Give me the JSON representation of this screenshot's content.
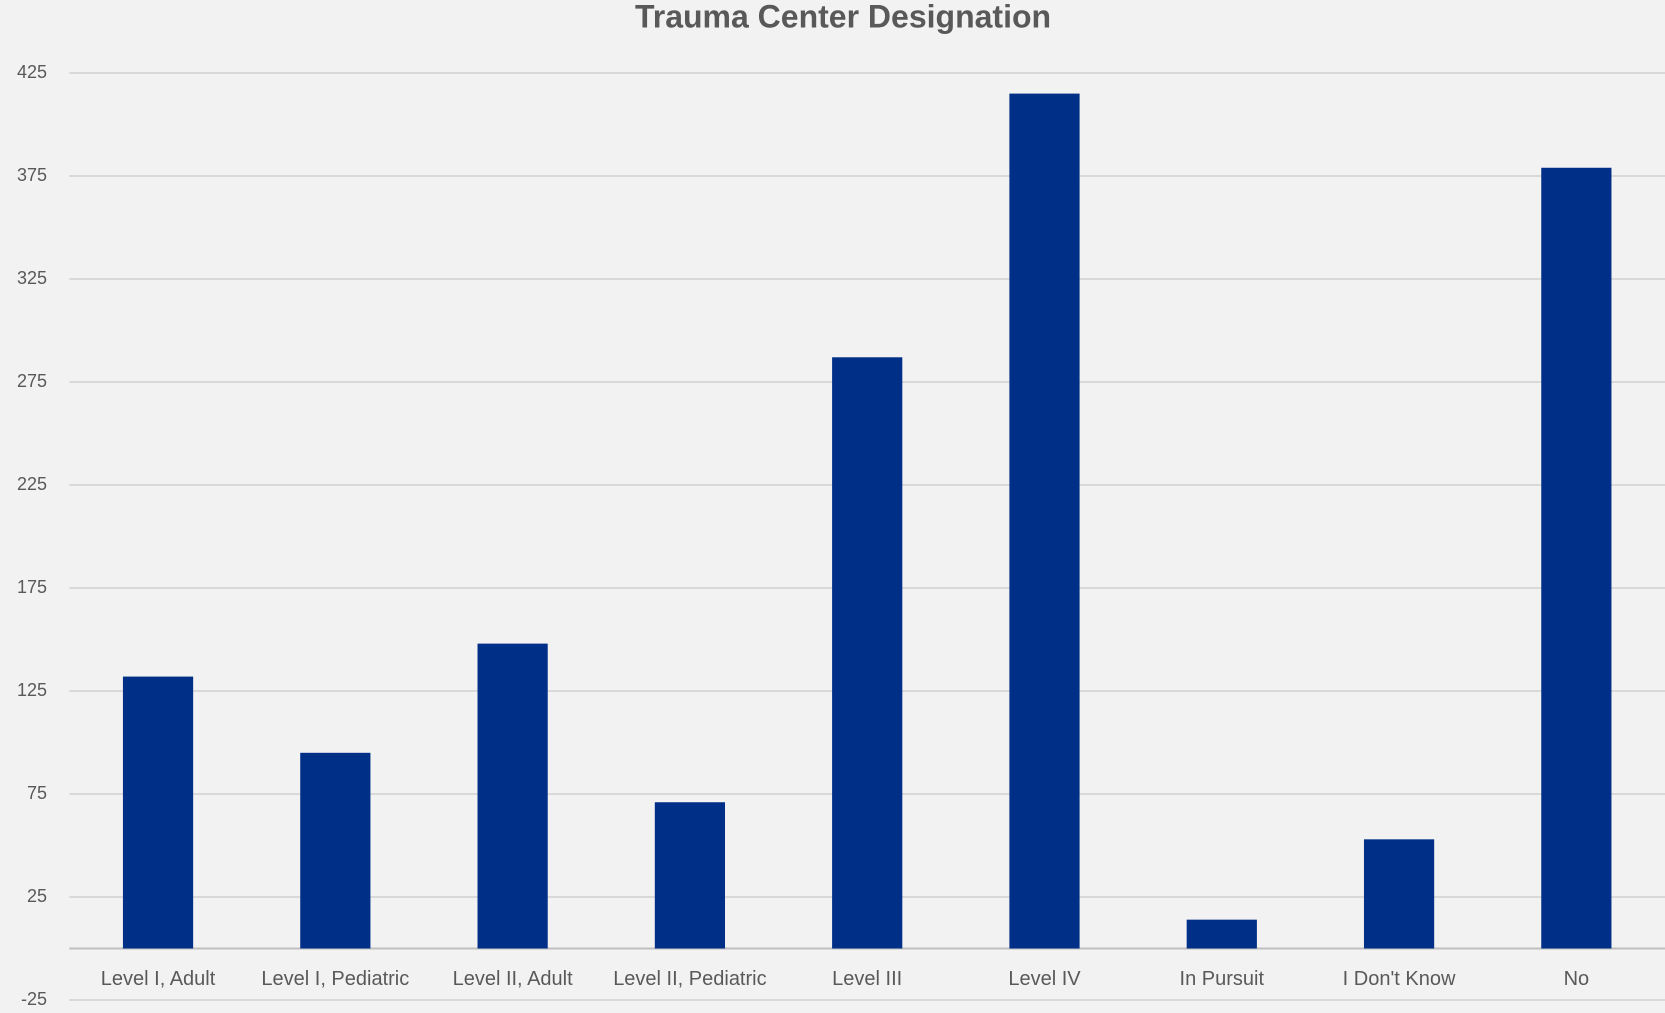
{
  "chart_data": {
    "type": "bar",
    "title": "Trauma Center Designation",
    "categories": [
      "Level I, Adult",
      "Level I, Pediatric",
      "Level II, Adult",
      "Level II, Pediatric",
      "Level III",
      "Level IV",
      "In Pursuit",
      "I Don't Know",
      "No"
    ],
    "values": [
      132,
      95,
      148,
      71,
      287,
      415,
      14,
      53,
      379
    ],
    "color": "#002f87",
    "ylim": [
      -25,
      425
    ],
    "yticks": [
      -25,
      25,
      75,
      125,
      175,
      225,
      275,
      325,
      375,
      425
    ],
    "grid": true
  }
}
